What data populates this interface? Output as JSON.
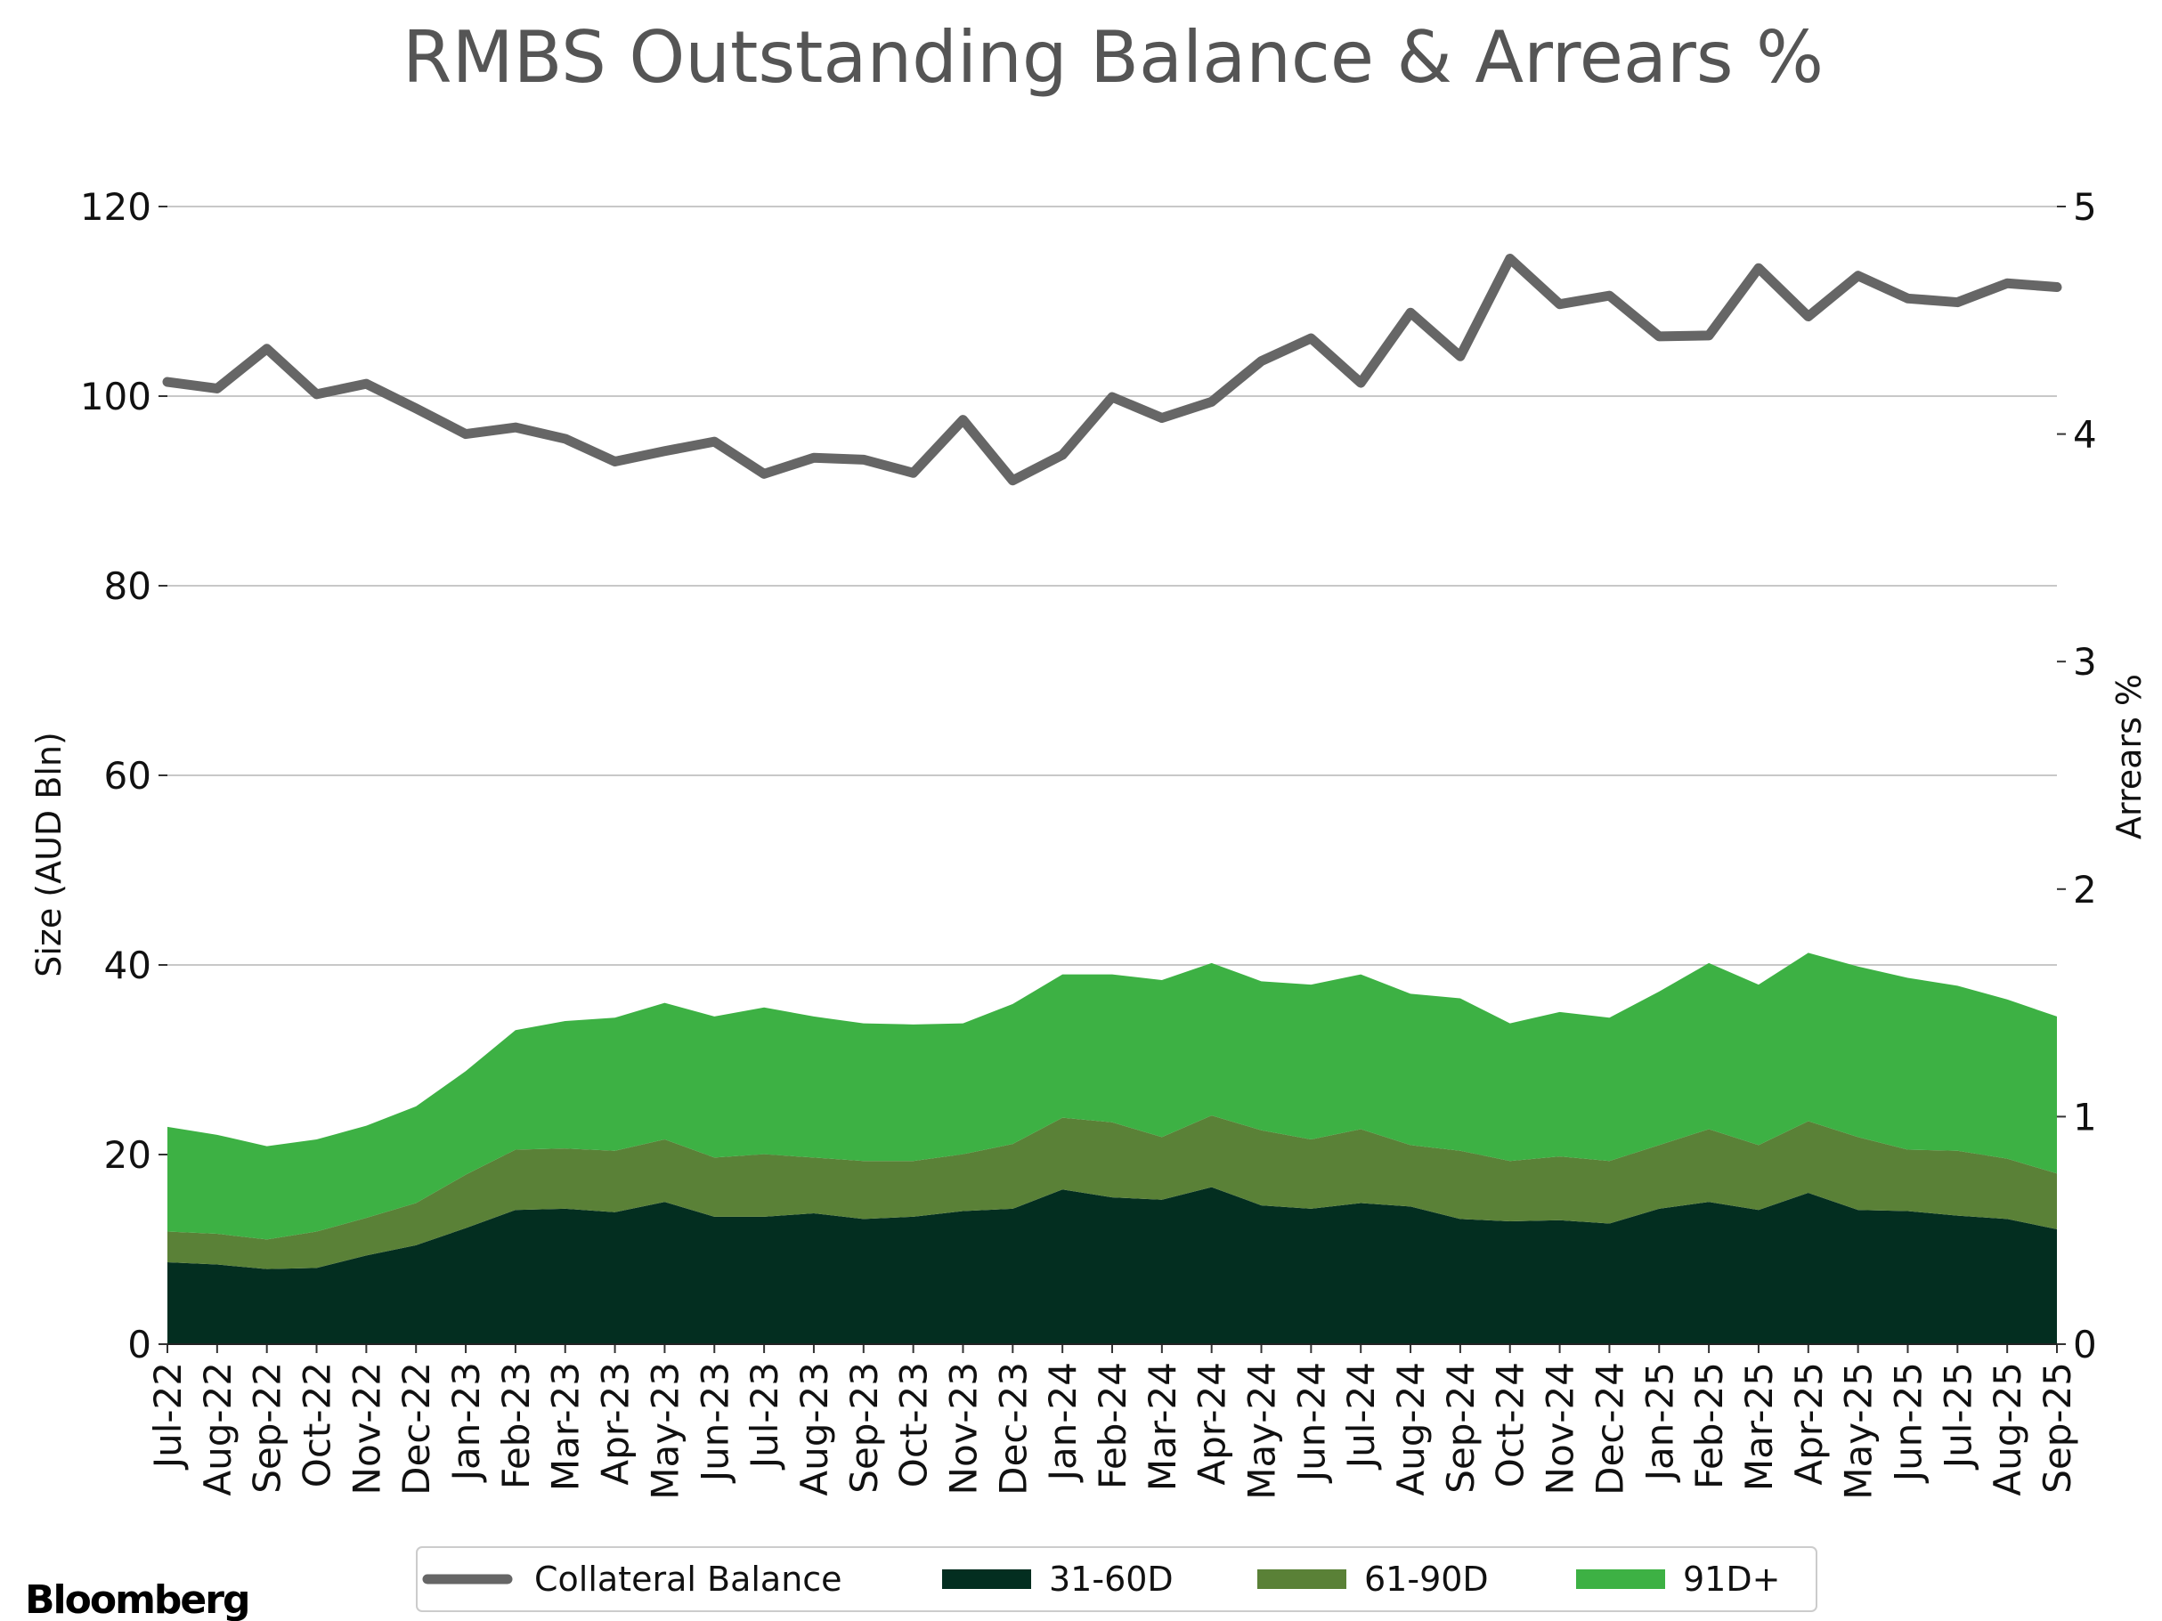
{
  "chart_data": {
    "type": "area",
    "title": "RMBS Outstanding Balance & Arrears %",
    "ylabel": "Size (AUD Bln)",
    "y2label": "Arrears %",
    "xlabel": "",
    "ylim": [
      0,
      120
    ],
    "y2lim": [
      0,
      5
    ],
    "yticks": [
      "0",
      "20",
      "40",
      "60",
      "80",
      "100",
      "120"
    ],
    "y2ticks": [
      "0",
      "1",
      "2",
      "3",
      "4",
      "5"
    ],
    "grid": true,
    "legend_position": "bottom-center",
    "categories": [
      "Jul-22",
      "Aug-22",
      "Sep-22",
      "Oct-22",
      "Nov-22",
      "Dec-22",
      "Jan-23",
      "Feb-23",
      "Mar-23",
      "Apr-23",
      "May-23",
      "Jun-23",
      "Jul-23",
      "Aug-23",
      "Sep-23",
      "Oct-23",
      "Nov-23",
      "Dec-23",
      "Jan-24",
      "Feb-24",
      "Mar-24",
      "Apr-24",
      "May-24",
      "Jun-24",
      "Jul-24",
      "Aug-24",
      "Sep-24",
      "Oct-24",
      "Nov-24",
      "Dec-24",
      "Jan-25",
      "Feb-25",
      "Mar-25",
      "Apr-25",
      "May-25",
      "Jun-25",
      "Jul-25",
      "Aug-25",
      "Sep-25"
    ],
    "series": [
      {
        "name": "Collateral Balance",
        "kind": "line",
        "axis": "left",
        "color": "#666666",
        "values": [
          101.5,
          100.8,
          105.0,
          100.2,
          101.3,
          98.7,
          96.0,
          96.7,
          95.5,
          93.1,
          94.2,
          95.2,
          91.8,
          93.5,
          93.3,
          91.9,
          97.5,
          91.1,
          93.8,
          99.9,
          97.7,
          99.4,
          103.7,
          106.1,
          101.4,
          108.8,
          104.2,
          114.5,
          109.7,
          110.6,
          106.3,
          106.4,
          113.5,
          108.4,
          112.7,
          110.3,
          109.9,
          111.9,
          111.5
        ]
      },
      {
        "name": "31-60D",
        "kind": "stacked-area",
        "axis": "right",
        "color": "#032e20",
        "values": [
          0.36,
          0.35,
          0.33,
          0.335,
          0.39,
          0.435,
          0.51,
          0.59,
          0.595,
          0.58,
          0.625,
          0.56,
          0.56,
          0.575,
          0.55,
          0.56,
          0.585,
          0.595,
          0.68,
          0.645,
          0.635,
          0.69,
          0.61,
          0.595,
          0.62,
          0.605,
          0.55,
          0.54,
          0.545,
          0.53,
          0.595,
          0.625,
          0.59,
          0.665,
          0.59,
          0.585,
          0.565,
          0.55,
          0.505
        ]
      },
      {
        "name": "61-90D",
        "kind": "stacked-area",
        "axis": "right",
        "color": "#5a8137",
        "values": [
          0.135,
          0.135,
          0.13,
          0.16,
          0.165,
          0.185,
          0.235,
          0.265,
          0.265,
          0.27,
          0.275,
          0.26,
          0.275,
          0.245,
          0.255,
          0.245,
          0.25,
          0.285,
          0.315,
          0.33,
          0.275,
          0.315,
          0.33,
          0.305,
          0.325,
          0.27,
          0.3,
          0.265,
          0.28,
          0.275,
          0.28,
          0.32,
          0.285,
          0.315,
          0.32,
          0.27,
          0.285,
          0.265,
          0.245
        ]
      },
      {
        "name": "91D+",
        "kind": "stacked-area",
        "axis": "right",
        "color": "#3db144",
        "values": [
          0.46,
          0.435,
          0.41,
          0.405,
          0.405,
          0.425,
          0.455,
          0.525,
          0.56,
          0.585,
          0.6,
          0.62,
          0.645,
          0.62,
          0.605,
          0.6,
          0.575,
          0.615,
          0.63,
          0.65,
          0.69,
          0.67,
          0.655,
          0.68,
          0.68,
          0.665,
          0.67,
          0.605,
          0.635,
          0.63,
          0.675,
          0.73,
          0.705,
          0.74,
          0.75,
          0.755,
          0.725,
          0.7,
          0.69
        ]
      }
    ]
  },
  "brand": "Bloomberg"
}
